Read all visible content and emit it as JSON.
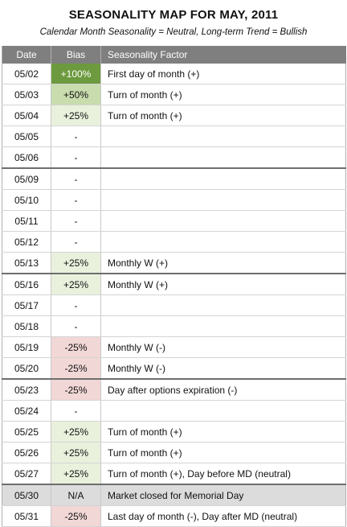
{
  "title": "SEASONALITY MAP FOR MAY, 2011",
  "subtitle": "Calendar Month Seasonality = Neutral, Long-term Trend = Bullish",
  "headers": {
    "date": "Date",
    "bias": "Bias",
    "factor": "Seasonality Factor"
  },
  "colors": {
    "strong_positive": "#6d9a3e",
    "positive_50": "#c8dcae",
    "positive_25": "#e9f1dd",
    "negative": "#f1d7d6",
    "holiday": "#dcdcdc",
    "header": "#7f7f7f"
  },
  "rows": [
    {
      "date": "05/02",
      "bias": "+100%",
      "factor": "First day of month (+)"
    },
    {
      "date": "05/03",
      "bias": "+50%",
      "factor": "Turn of month (+)"
    },
    {
      "date": "05/04",
      "bias": "+25%",
      "factor": "Turn of month (+)"
    },
    {
      "date": "05/05",
      "bias": "-",
      "factor": ""
    },
    {
      "date": "05/06",
      "bias": "-",
      "factor": ""
    },
    {
      "date": "05/09",
      "bias": "-",
      "factor": ""
    },
    {
      "date": "05/10",
      "bias": "-",
      "factor": ""
    },
    {
      "date": "05/11",
      "bias": "-",
      "factor": ""
    },
    {
      "date": "05/12",
      "bias": "-",
      "factor": ""
    },
    {
      "date": "05/13",
      "bias": "+25%",
      "factor": "Monthly W (+)"
    },
    {
      "date": "05/16",
      "bias": "+25%",
      "factor": "Monthly W (+)"
    },
    {
      "date": "05/17",
      "bias": "-",
      "factor": ""
    },
    {
      "date": "05/18",
      "bias": "-",
      "factor": ""
    },
    {
      "date": "05/19",
      "bias": "-25%",
      "factor": "Monthly W (-)"
    },
    {
      "date": "05/20",
      "bias": "-25%",
      "factor": "Monthly W (-)"
    },
    {
      "date": "05/23",
      "bias": "-25%",
      "factor": "Day after options expiration (-)"
    },
    {
      "date": "05/24",
      "bias": "-",
      "factor": ""
    },
    {
      "date": "05/25",
      "bias": "+25%",
      "factor": "Turn of month (+)"
    },
    {
      "date": "05/26",
      "bias": "+25%",
      "factor": "Turn of month (+)"
    },
    {
      "date": "05/27",
      "bias": "+25%",
      "factor": "Turn of month (+), Day before MD (neutral)"
    },
    {
      "date": "05/30",
      "bias": "N/A",
      "factor": "Market closed for Memorial Day"
    },
    {
      "date": "05/31",
      "bias": "-25%",
      "factor": "Last day of month (-), Day after MD (neutral)"
    }
  ]
}
